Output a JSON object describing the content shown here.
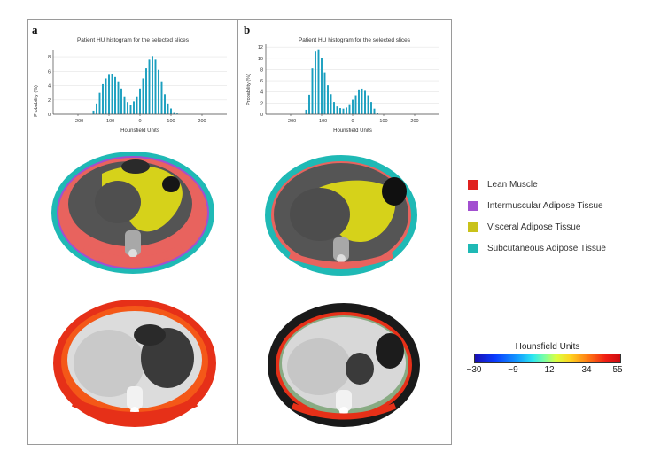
{
  "panels": [
    {
      "letter": "a",
      "histogram": {
        "title": "Patient HU histogram for the selected slices",
        "xlabel": "Hounsfield Units",
        "ylabel": "Probability (%)",
        "yticks": [
          "0",
          "2",
          "4",
          "6",
          "8"
        ],
        "xticks": [
          "−200",
          "−100",
          "0",
          "100",
          "200"
        ]
      }
    },
    {
      "letter": "b",
      "histogram": {
        "title": "Patient HU histogram for the selected slices",
        "xlabel": "Hounsfield Units",
        "ylabel": "Probability (%)",
        "yticks": [
          "0",
          "2",
          "4",
          "6",
          "8",
          "10",
          "12"
        ],
        "xticks": [
          "−200",
          "−100",
          "0",
          "100",
          "200"
        ]
      }
    }
  ],
  "legend": {
    "items": [
      {
        "label": "Lean Muscle",
        "color": "#e0211f"
      },
      {
        "label": "Intermuscular Adipose Tissue",
        "color": "#a24fd0"
      },
      {
        "label": "Visceral Adipose Tissue",
        "color": "#c9c21a"
      },
      {
        "label": "Subcutaneous Adipose Tissue",
        "color": "#1fb9b5"
      }
    ]
  },
  "colorbar": {
    "title": "Hounsfield Units",
    "ticks": [
      "−30",
      "−9",
      "12",
      "34",
      "55"
    ]
  },
  "chart_data": [
    {
      "type": "bar",
      "title": "Patient HU histogram for the selected slices",
      "xlabel": "Hounsfield Units",
      "ylabel": "Probability (%)",
      "xlim": [
        -280,
        280
      ],
      "ylim": [
        0,
        9
      ],
      "x": [
        -150,
        -140,
        -130,
        -120,
        -110,
        -100,
        -90,
        -80,
        -70,
        -60,
        -50,
        -40,
        -30,
        -20,
        -10,
        0,
        10,
        20,
        30,
        40,
        50,
        60,
        70,
        80,
        90,
        100,
        110,
        120
      ],
      "values": [
        0.5,
        1.5,
        3.0,
        4.2,
        5.0,
        5.5,
        5.6,
        5.2,
        4.6,
        3.6,
        2.5,
        1.7,
        1.3,
        1.8,
        2.5,
        3.6,
        5.0,
        6.4,
        7.6,
        8.1,
        7.6,
        6.2,
        4.6,
        2.8,
        1.5,
        0.8,
        0.3,
        0.1
      ]
    },
    {
      "type": "bar",
      "title": "Patient HU histogram for the selected slices",
      "xlabel": "Hounsfield Units",
      "ylabel": "Probability (%)",
      "xlim": [
        -280,
        280
      ],
      "ylim": [
        0,
        12.5
      ],
      "x": [
        -150,
        -140,
        -130,
        -120,
        -110,
        -100,
        -90,
        -80,
        -70,
        -60,
        -50,
        -40,
        -30,
        -20,
        -10,
        0,
        10,
        20,
        30,
        40,
        50,
        60,
        70,
        80
      ],
      "values": [
        0.8,
        3.5,
        8.2,
        11.2,
        11.6,
        10.0,
        7.5,
        5.2,
        3.6,
        2.2,
        1.4,
        1.1,
        1.0,
        1.2,
        1.8,
        2.6,
        3.4,
        4.3,
        4.6,
        4.2,
        3.4,
        2.2,
        1.0,
        0.3
      ]
    }
  ]
}
